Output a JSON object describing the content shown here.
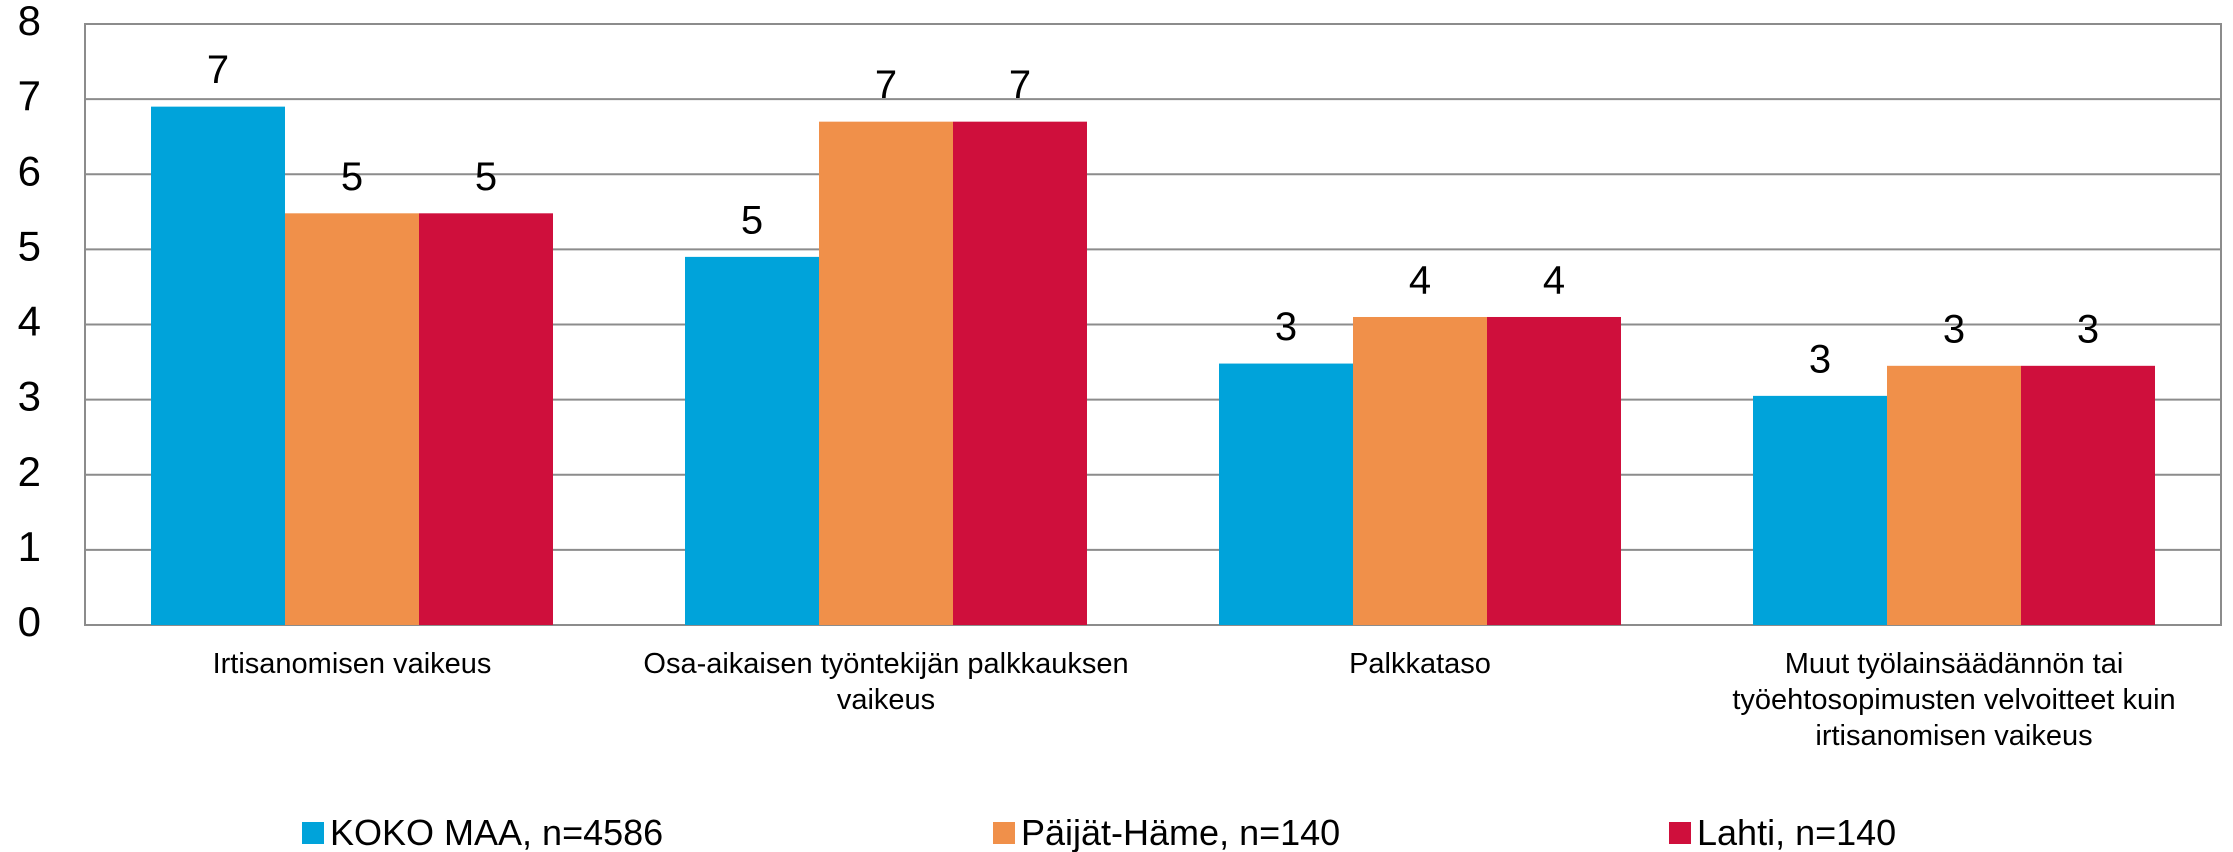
{
  "chart_data": {
    "type": "bar",
    "categories": [
      "Irtisanomisen vaikeus",
      "Osa-aikaisen työntekijän palkkauksen vaikeus",
      "Palkkataso",
      "Muut työlainsäädännön tai työehtosopimusten velvoitteet kuin irtisanomisen vaikeus"
    ],
    "series": [
      {
        "name": "KOKO MAA, n=4586",
        "color": "#00a3da",
        "values": [
          6.9,
          4.9,
          3.48,
          3.05
        ],
        "value_labels": [
          "7",
          "5",
          "3",
          "3"
        ]
      },
      {
        "name": "Päijät-Häme, n=140",
        "color": "#f0904a",
        "values": [
          5.48,
          6.7,
          4.1,
          3.45
        ],
        "value_labels": [
          "5",
          "7",
          "4",
          "3"
        ]
      },
      {
        "name": "Lahti, n=140",
        "color": "#cf0f3c",
        "values": [
          5.48,
          6.7,
          4.1,
          3.45
        ],
        "value_labels": [
          "5",
          "7",
          "4",
          "3"
        ]
      }
    ],
    "ylim": [
      0,
      8
    ],
    "yticks": [
      0,
      1,
      2,
      3,
      4,
      5,
      6,
      7,
      8
    ],
    "grid": true,
    "legend": "bottom"
  }
}
